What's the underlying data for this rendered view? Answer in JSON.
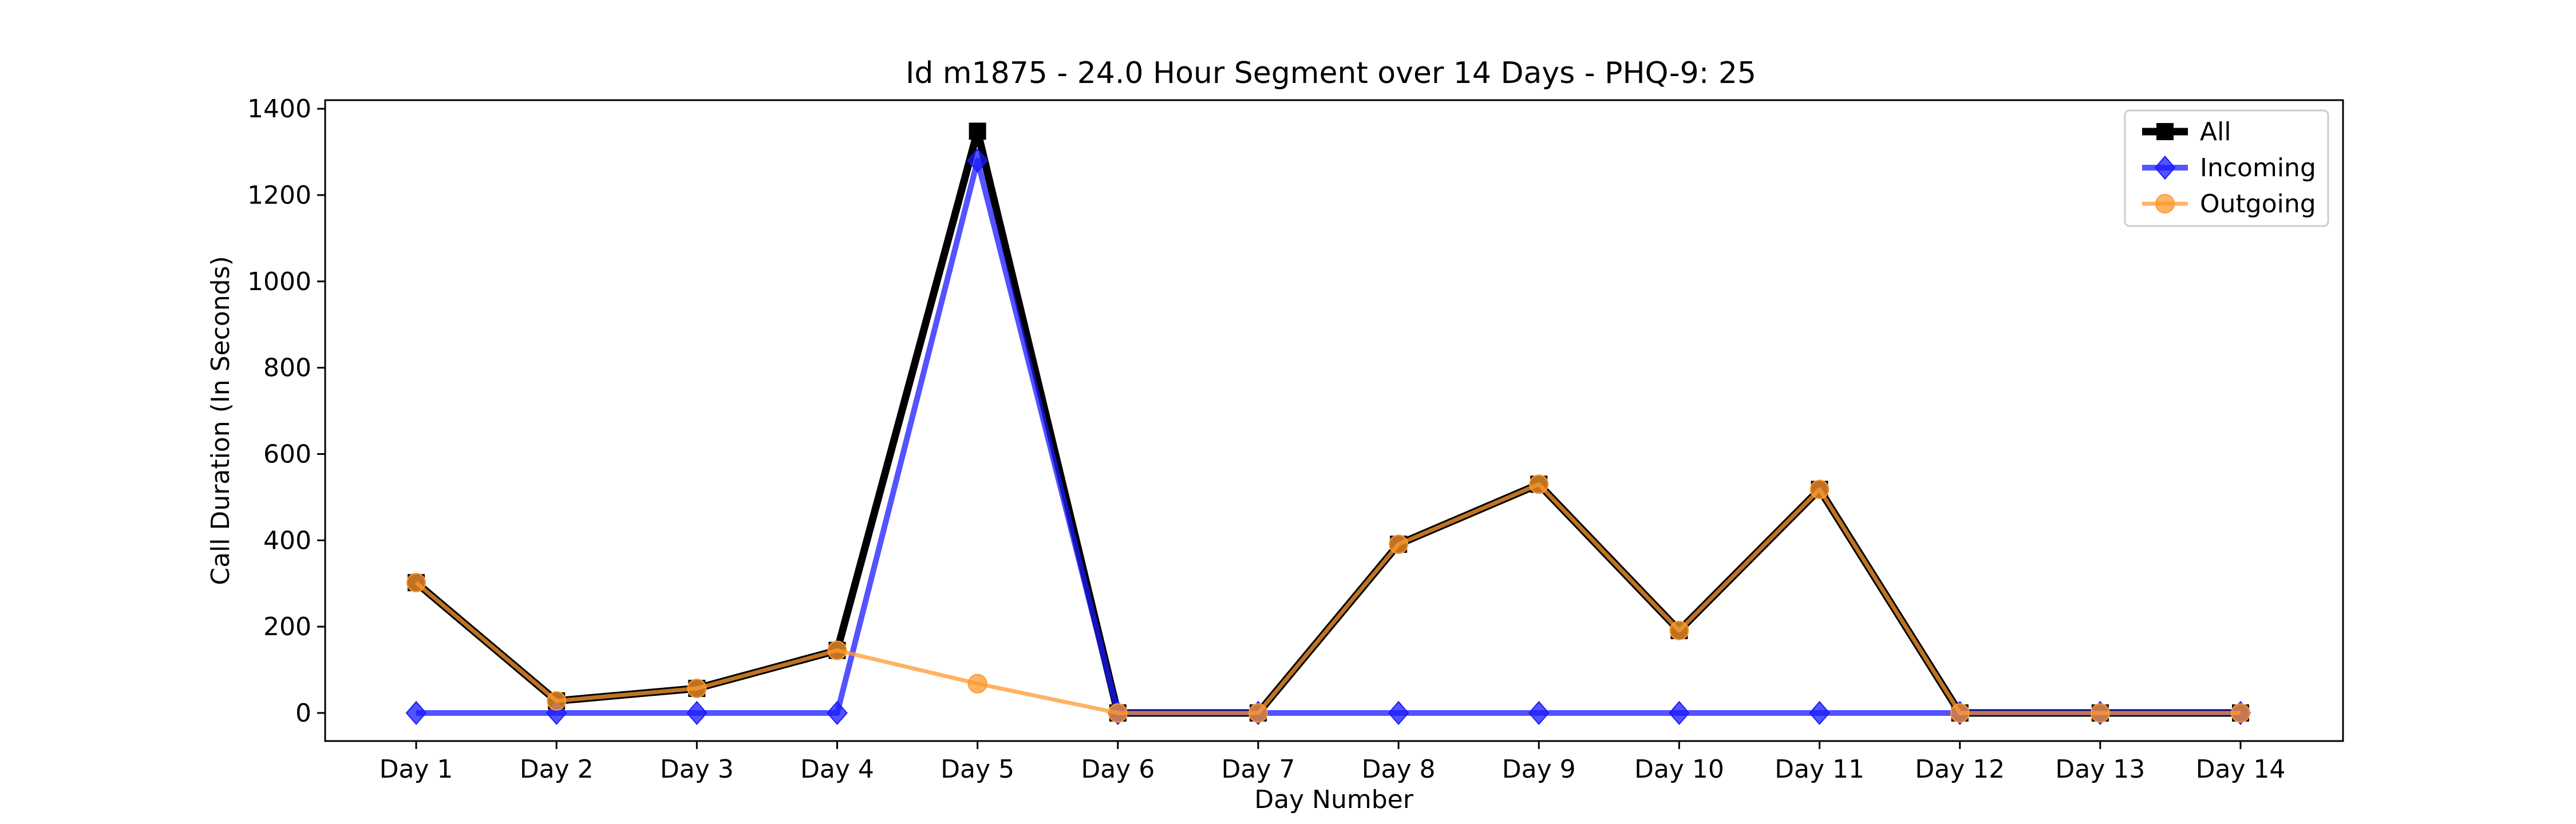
{
  "chart_data": {
    "type": "line",
    "title": "Id m1875 - 24.0 Hour Segment over 14 Days - PHQ-9: 25",
    "xlabel": "Day Number",
    "ylabel": "Call Duration (In Seconds)",
    "categories": [
      "Day 1",
      "Day 2",
      "Day 3",
      "Day 4",
      "Day 5",
      "Day 6",
      "Day 7",
      "Day 8",
      "Day 9",
      "Day 10",
      "Day 11",
      "Day 12",
      "Day 13",
      "Day 14"
    ],
    "yticks": [
      "0",
      "200",
      "400",
      "600",
      "800",
      "1000",
      "1200",
      "1400"
    ],
    "ylim": [
      -65,
      1420
    ],
    "grid": false,
    "legend_position": "top-right",
    "series": [
      {
        "name": "All",
        "color": "#000000",
        "marker": "square",
        "values": [
          302,
          28,
          57,
          145,
          1348,
          0,
          0,
          391,
          530,
          191,
          518,
          0,
          0,
          0
        ]
      },
      {
        "name": "Incoming",
        "color": "#1a1aff",
        "marker": "diamond",
        "values": [
          0,
          0,
          0,
          0,
          1280,
          0,
          0,
          0,
          0,
          0,
          0,
          0,
          0,
          0
        ]
      },
      {
        "name": "Outgoing",
        "color": "#ff9a2e",
        "marker": "circle",
        "values": [
          302,
          28,
          57,
          145,
          68,
          0,
          0,
          391,
          530,
          191,
          518,
          0,
          0,
          0
        ]
      }
    ]
  }
}
